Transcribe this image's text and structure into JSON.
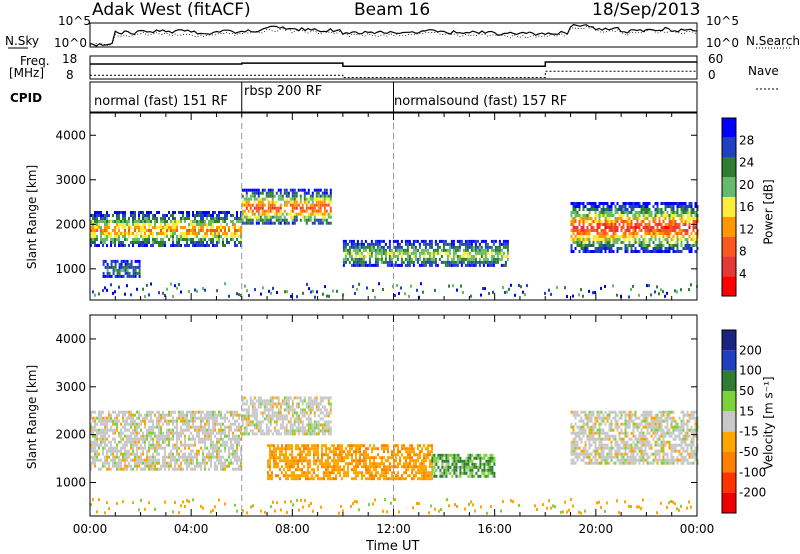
{
  "header": {
    "radar": "Adak West (fitACF)",
    "beam": "Beam 16",
    "date": "18/Sep/2013"
  },
  "top_panels": {
    "nsky_label": "N.Sky",
    "nsky_ticks": [
      "10^5",
      "10^0"
    ],
    "nsky_right_ticks": [
      "10^5",
      "10^0"
    ],
    "nsearch_label": "N.Search",
    "freq_label": "Freq.",
    "freq_unit": "[MHz]",
    "freq_ticks": [
      "18",
      "8"
    ],
    "nave_label": "Nave",
    "nave_ticks": [
      "60",
      "0"
    ],
    "cpid_label": "CPID",
    "cpid_segments": [
      {
        "label": "normal (fast) 151 RF",
        "start_hour": 0,
        "end_hour": 6
      },
      {
        "label": "rbsp 200 RF",
        "start_hour": 6,
        "end_hour": 12
      },
      {
        "label": "normalsound (fast) 157 RF",
        "start_hour": 12,
        "end_hour": 24
      }
    ]
  },
  "colorbars": {
    "power": {
      "label": "Power [dB]",
      "ticks": [
        "28",
        "24",
        "20",
        "16",
        "12",
        "8",
        "4"
      ],
      "colors": [
        "#0000ff",
        "#2040c0",
        "#2e7d32",
        "#66bb6a",
        "#ffeb3b",
        "#ff9800",
        "#ff5722",
        "#e53935",
        "#ff0000"
      ]
    },
    "velocity": {
      "label": "Velocity [m s⁻¹]",
      "ticks": [
        "200",
        "100",
        "50",
        "15",
        "-15",
        "-50",
        "-100",
        "-200"
      ],
      "colors": [
        "#1a237e",
        "#1e3fbf",
        "#2e7d32",
        "#7cd23a",
        "#c8c8c8",
        "#ffa500",
        "#ff7f00",
        "#ff3300",
        "#ee0000"
      ]
    }
  },
  "chart_data": [
    {
      "type": "line",
      "title": "N.Sky / N.Search",
      "x_hours": [
        0,
        1,
        2,
        3,
        4,
        5,
        6,
        7,
        8,
        9,
        10,
        11,
        12,
        13,
        14,
        15,
        16,
        17,
        18,
        19,
        20,
        21,
        22,
        23,
        24
      ],
      "series": [
        {
          "name": "N.Sky",
          "log10_values": [
            0.2,
            1.2,
            1.3,
            1.3,
            1.2,
            1.3,
            1.4,
            1.6,
            1.5,
            1.4,
            1.2,
            1.2,
            1.2,
            1.3,
            1.2,
            1.2,
            1.1,
            1.1,
            1.2,
            1.8,
            1.5,
            1.3,
            1.5,
            1.4,
            1.4
          ]
        },
        {
          "name": "N.Search",
          "log10_values": [
            0.2,
            1.0,
            1.1,
            1.1,
            1.0,
            1.1,
            1.2,
            1.4,
            1.3,
            1.2,
            1.0,
            1.0,
            1.0,
            1.1,
            1.0,
            1.0,
            0.9,
            0.9,
            1.0,
            1.6,
            1.3,
            1.1,
            1.3,
            1.2,
            1.2
          ]
        }
      ],
      "xlim": [
        0,
        24
      ]
    },
    {
      "type": "line",
      "title": "Freq / Nave",
      "series": [
        {
          "name": "Freq",
          "steps": [
            [
              0,
              14.5
            ],
            [
              6,
              14.9
            ],
            [
              10,
              13.5
            ],
            [
              18,
              15.4
            ],
            [
              24,
              15.4
            ]
          ],
          "ylim": [
            8,
            18
          ]
        },
        {
          "name": "Nave",
          "steps": [
            [
              0,
              10
            ],
            [
              10,
              4
            ],
            [
              12,
              4
            ],
            [
              18,
              20
            ],
            [
              24,
              20
            ]
          ],
          "ylim": [
            0,
            60
          ]
        }
      ],
      "xlim": [
        0,
        24
      ]
    },
    {
      "type": "heatmap",
      "title": "Power",
      "xlabel": "",
      "ylabel": "Slant Range [km]",
      "xlim": [
        0,
        24
      ],
      "ylim": [
        300,
        4500
      ],
      "yticks": [
        1000,
        2000,
        3000,
        4000
      ],
      "zlim": [
        0,
        30
      ],
      "zlabel": "Power [dB]",
      "regions": [
        {
          "t0": 0,
          "t1": 6,
          "r0": 1500,
          "r1": 2300,
          "peak_db": 20
        },
        {
          "t0": 6,
          "t1": 9.5,
          "r0": 2000,
          "r1": 2800,
          "peak_db": 24
        },
        {
          "t0": 10,
          "t1": 16.5,
          "r0": 1050,
          "r1": 1650,
          "peak_db": 14
        },
        {
          "t0": 19,
          "t1": 24,
          "r0": 1400,
          "r1": 2500,
          "peak_db": 26
        },
        {
          "t0": 0.5,
          "t1": 2,
          "r0": 800,
          "r1": 1200,
          "peak_db": 8
        }
      ]
    },
    {
      "type": "heatmap",
      "title": "Velocity",
      "xlabel": "Time UT",
      "ylabel": "Slant Range [km]",
      "xlim": [
        0,
        24
      ],
      "ylim": [
        300,
        4500
      ],
      "yticks": [
        1000,
        2000,
        3000,
        4000
      ],
      "xticks": [
        "00:00",
        "04:00",
        "08:00",
        "12:00",
        "16:00",
        "20:00",
        "00:00"
      ],
      "zlim": [
        -200,
        200
      ],
      "zlabel": "Velocity [m s⁻¹]",
      "regions": [
        {
          "t0": 0,
          "t1": 6,
          "r0": 1300,
          "r1": 2500,
          "vel": 0
        },
        {
          "t0": 6,
          "t1": 9.5,
          "r0": 2000,
          "r1": 2800,
          "vel": 0
        },
        {
          "t0": 7,
          "t1": 13.5,
          "r0": 1100,
          "r1": 1800,
          "vel": -40
        },
        {
          "t0": 13.5,
          "t1": 16,
          "r0": 1150,
          "r1": 1600,
          "vel": 30
        },
        {
          "t0": 19,
          "t1": 24,
          "r0": 1400,
          "r1": 2500,
          "vel": 0
        }
      ]
    }
  ]
}
